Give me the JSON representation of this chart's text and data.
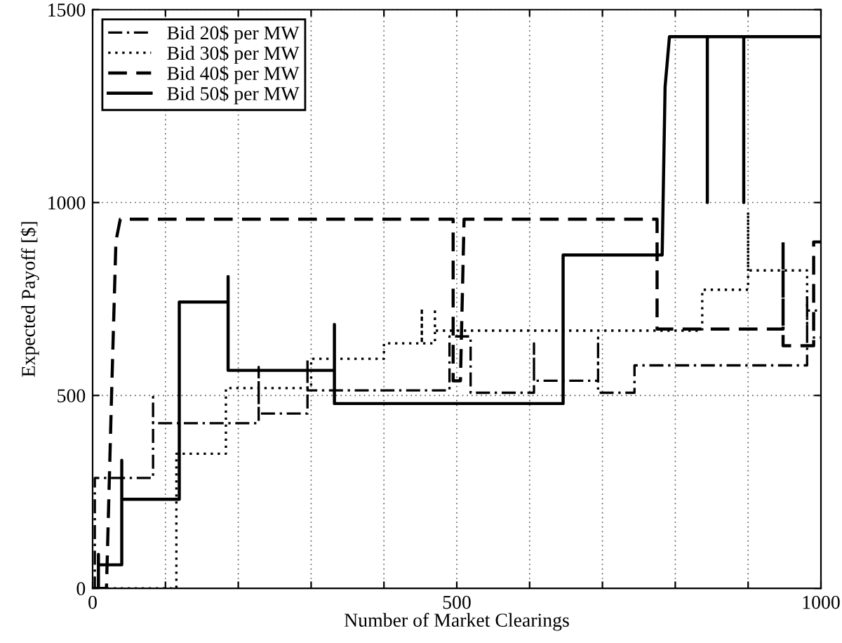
{
  "chart_data": {
    "type": "line",
    "xlabel": "Number of Market Clearings",
    "ylabel": "Expected Payoff [$]",
    "xlim": [
      0,
      1000
    ],
    "ylim": [
      0,
      1500
    ],
    "xticks": [
      0,
      {
        "value": 100,
        "label": null
      },
      {
        "value": 200,
        "label": null
      },
      {
        "value": 300,
        "label": null
      },
      {
        "value": 400,
        "label": null
      },
      500,
      {
        "value": 600,
        "label": null
      },
      {
        "value": 700,
        "label": null
      },
      {
        "value": 800,
        "label": null
      },
      {
        "value": 900,
        "label": null
      },
      1000
    ],
    "yticks": [
      0,
      500,
      1000,
      1500
    ],
    "grid": true,
    "legend": "top left",
    "marker": "none",
    "series": [
      {
        "name": "Bid 20$ per MW",
        "color": "#000000",
        "line_style": "dashdot",
        "x": [
          0,
          3,
          3,
          83,
          83,
          83,
          228,
          228,
          228,
          295,
          295,
          295,
          490,
          490,
          519,
          519,
          606,
          606,
          606,
          694,
          694,
          694,
          744,
          744,
          981,
          981,
          981,
          1000
        ],
        "values": [
          0,
          0,
          286,
          286,
          496,
          428,
          428,
          574,
          453,
          453,
          595,
          513,
          513,
          653,
          653,
          507,
          507,
          635,
          538,
          538,
          650,
          507,
          507,
          578,
          578,
          760,
          650,
          650
        ]
      },
      {
        "name": "Bid 30$ per MW",
        "color": "#000000",
        "line_style": "dotted",
        "x": [
          0,
          115,
          115,
          183,
          183,
          300,
          300,
          400,
          400,
          452,
          452,
          452,
          470,
          470,
          470,
          837,
          837,
          900,
          900,
          900,
          981,
          981,
          1000
        ],
        "values": [
          0,
          0,
          349,
          349,
          519,
          519,
          595,
          595,
          635,
          635,
          726,
          635,
          635,
          726,
          668,
          668,
          774,
          774,
          976,
          824,
          824,
          720,
          720
        ]
      },
      {
        "name": "Bid 40$ per MW",
        "color": "#000000",
        "line_style": "dashed",
        "x": [
          0,
          19,
          26,
          32,
          38,
          495,
          495,
          505,
          510,
          775,
          775,
          948,
          948,
          948,
          990,
          990,
          1000
        ],
        "values": [
          0,
          0,
          500,
          900,
          957,
          957,
          538,
          538,
          957,
          957,
          672,
          672,
          898,
          629,
          629,
          898,
          898
        ]
      },
      {
        "name": "Bid 50$ per MW",
        "color": "#000000",
        "line_style": "solid",
        "x": [
          0,
          8,
          8,
          8,
          40,
          40,
          40,
          119,
          119,
          186,
          186,
          186,
          332,
          332,
          332,
          646,
          646,
          782,
          786,
          792,
          844,
          844,
          844,
          894,
          894,
          894,
          1000
        ],
        "values": [
          0,
          0,
          88,
          61,
          61,
          332,
          231,
          231,
          742,
          742,
          808,
          565,
          565,
          684,
          479,
          479,
          864,
          864,
          1300,
          1430,
          1430,
          1000,
          1430,
          1430,
          1000,
          1430,
          1430
        ]
      }
    ]
  }
}
